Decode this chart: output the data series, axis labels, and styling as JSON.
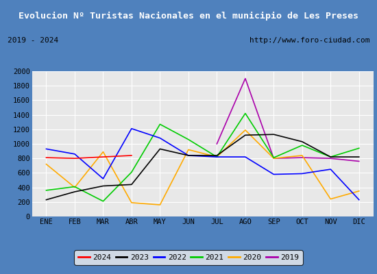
{
  "title": "Evolucion Nº Turistas Nacionales en el municipio de Les Preses",
  "subtitle_left": "2019 - 2024",
  "subtitle_right": "http://www.foro-ciudad.com",
  "months": [
    "ENE",
    "FEB",
    "MAR",
    "ABR",
    "MAY",
    "JUN",
    "JUL",
    "AGO",
    "SEP",
    "OCT",
    "NOV",
    "DIC"
  ],
  "series": {
    "2024": [
      810,
      800,
      820,
      840,
      null,
      null,
      null,
      null,
      null,
      null,
      null,
      null
    ],
    "2023": [
      230,
      340,
      420,
      440,
      930,
      840,
      840,
      1120,
      1130,
      1030,
      820,
      820
    ],
    "2022": [
      930,
      860,
      520,
      1210,
      1080,
      840,
      820,
      820,
      580,
      590,
      650,
      230
    ],
    "2021": [
      360,
      410,
      210,
      610,
      1270,
      1060,
      820,
      1420,
      810,
      980,
      820,
      940
    ],
    "2020": [
      720,
      400,
      890,
      190,
      160,
      920,
      820,
      1190,
      800,
      840,
      240,
      350
    ],
    "2019": [
      null,
      null,
      null,
      null,
      null,
      null,
      1000,
      1900,
      800,
      810,
      800,
      760
    ]
  },
  "colors": {
    "2024": "#ff0000",
    "2023": "#000000",
    "2022": "#0000ff",
    "2021": "#00cc00",
    "2020": "#ffaa00",
    "2019": "#aa00aa"
  },
  "ylim": [
    0,
    2000
  ],
  "yticks": [
    0,
    200,
    400,
    600,
    800,
    1000,
    1200,
    1400,
    1600,
    1800,
    2000
  ],
  "title_bg_color": "#4f81bd",
  "title_color": "#ffffff",
  "plot_bg_color": "#e8e8e8",
  "grid_color": "#ffffff",
  "outer_bg_color": "#4f81bd",
  "subtitle_bg_color": "#f0f0f0"
}
